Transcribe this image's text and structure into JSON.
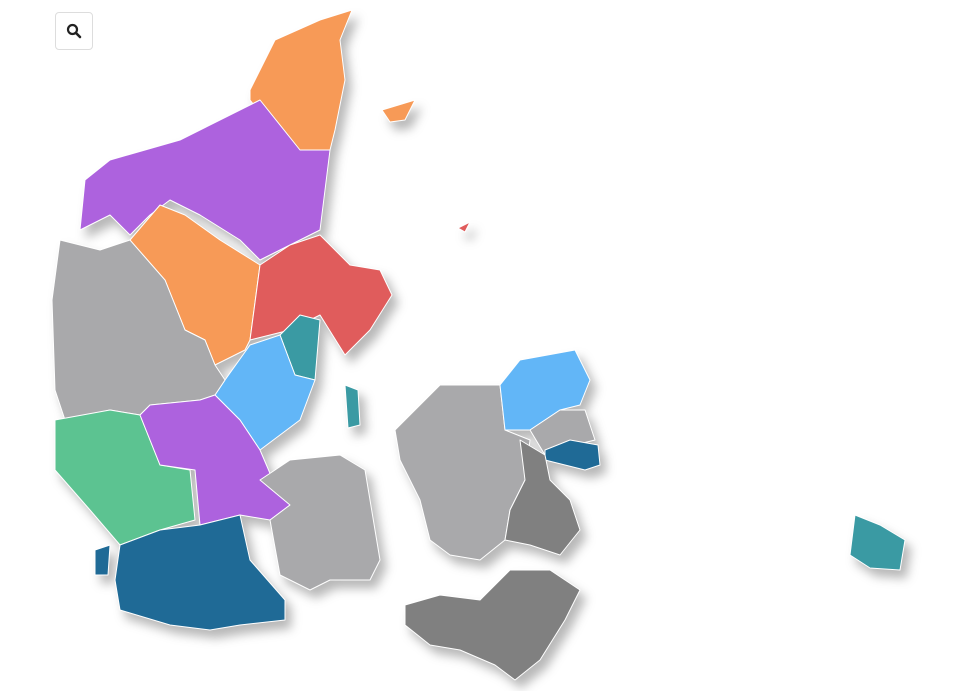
{
  "controls": {
    "search_icon": "magnifier-icon"
  },
  "colors": {
    "orange": "#f79a57",
    "purple": "#ad62de",
    "red": "#e05c5c",
    "teal": "#3a9aa3",
    "light_blue": "#62b6f7",
    "grey": "#a9a9ab",
    "dark_grey": "#808080",
    "green": "#5cc391",
    "dark_blue": "#1f6a96"
  }
}
